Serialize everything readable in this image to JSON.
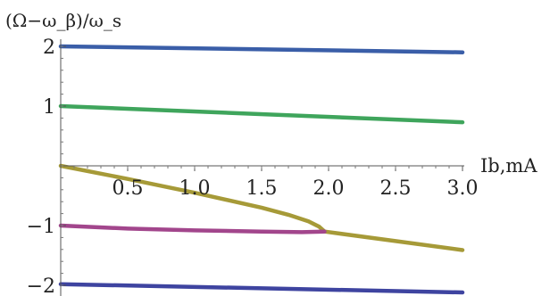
{
  "chart_data": {
    "type": "line",
    "xlabel": "Ib,mA",
    "ylabel": "(Ω−ω_β)/ω_s",
    "xlim": [
      0,
      3.0
    ],
    "ylim": [
      -2.2,
      2.3
    ],
    "x_ticks": [
      "0.5",
      "1.0",
      "1.5",
      "2.0",
      "2.5",
      "3.0"
    ],
    "y_ticks": [
      "2",
      "1",
      "−1",
      "−2"
    ],
    "grid": false,
    "legend": "none",
    "series": [
      {
        "color": "#3a5ea8",
        "x": [
          0,
          3.0
        ],
        "y": [
          2.0,
          1.9
        ]
      },
      {
        "color": "#3fa55c",
        "x": [
          0,
          3.0
        ],
        "y": [
          1.0,
          0.73
        ]
      },
      {
        "color": "#a69a38",
        "x": [
          0,
          0.5,
          1.0,
          1.5,
          1.7,
          1.85,
          1.93,
          1.97
        ],
        "y": [
          0,
          -0.22,
          -0.45,
          -0.7,
          -0.82,
          -0.93,
          -1.02,
          -1.1
        ]
      },
      {
        "color": "#a69a38",
        "x": [
          1.97,
          2.5,
          3.0
        ],
        "y": [
          -1.1,
          -1.26,
          -1.41
        ]
      },
      {
        "color": "#a2468c",
        "x": [
          0,
          0.5,
          1.0,
          1.5,
          1.8,
          1.97
        ],
        "y": [
          -1.0,
          -1.05,
          -1.08,
          -1.1,
          -1.11,
          -1.1
        ]
      },
      {
        "color": "#3e44a0",
        "x": [
          0,
          3.0
        ],
        "y": [
          -1.98,
          -2.12
        ]
      }
    ]
  }
}
